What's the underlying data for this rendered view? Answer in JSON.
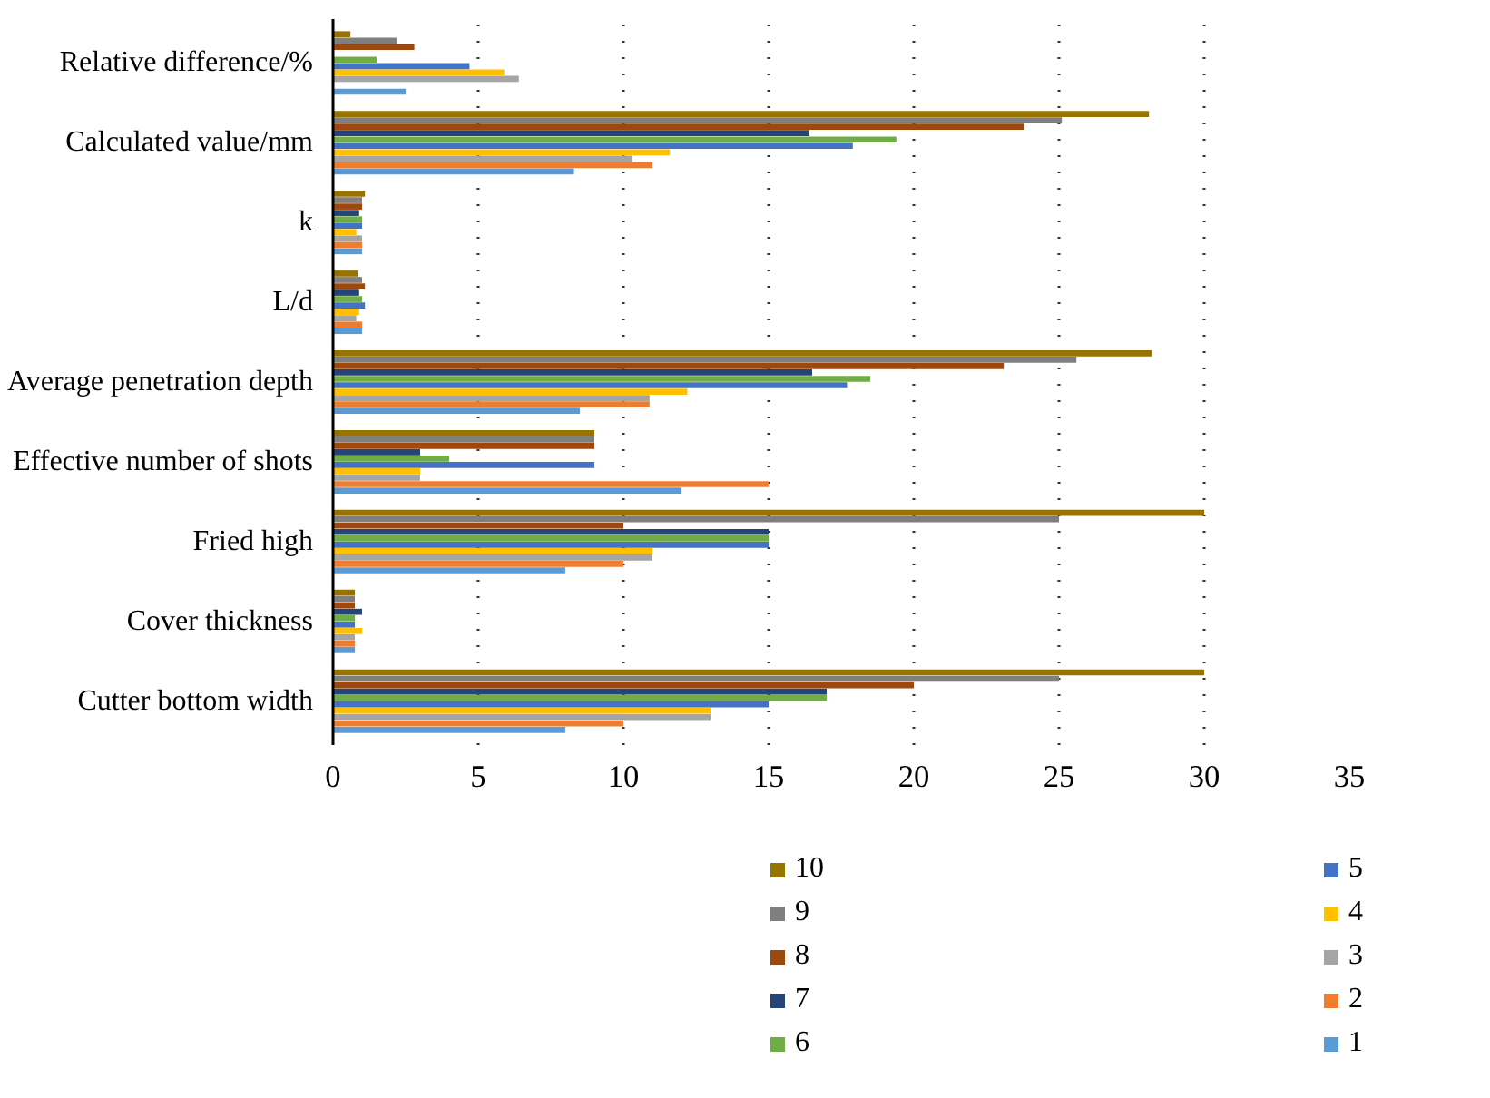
{
  "chart_data": {
    "type": "bar",
    "orientation": "horizontal",
    "categories": [
      "Relative difference/%",
      "Calculated value/mm",
      "k",
      "L/d",
      "Average penetration depth",
      "Effective number of shots",
      "Fried high",
      "Cover thickness",
      "Cutter bottom width"
    ],
    "series": [
      {
        "name": "1",
        "color": "#5b9bd5",
        "values": [
          2.5,
          8.3,
          1.0,
          1.0,
          8.5,
          12,
          8,
          0.75,
          8
        ]
      },
      {
        "name": "2",
        "color": "#ed7d31",
        "values": [
          null,
          11.0,
          1.0,
          1.0,
          10.9,
          15,
          10,
          0.75,
          10
        ]
      },
      {
        "name": "3",
        "color": "#a5a5a5",
        "values": [
          6.4,
          10.3,
          1.0,
          0.8,
          10.9,
          3,
          11,
          0.75,
          13
        ]
      },
      {
        "name": "4",
        "color": "#ffc000",
        "values": [
          5.9,
          11.6,
          0.8,
          0.9,
          12.2,
          3,
          11,
          1.0,
          13
        ]
      },
      {
        "name": "5",
        "color": "#4472c4",
        "values": [
          4.7,
          17.9,
          1.0,
          1.1,
          17.7,
          9,
          15,
          0.75,
          15
        ]
      },
      {
        "name": "6",
        "color": "#70ad47",
        "values": [
          1.5,
          19.4,
          1.0,
          1.0,
          18.5,
          4,
          15,
          0.75,
          17
        ]
      },
      {
        "name": "7",
        "color": "#264478",
        "values": [
          null,
          16.4,
          0.9,
          0.9,
          16.5,
          3,
          15,
          1.0,
          17
        ]
      },
      {
        "name": "8",
        "color": "#9e480e",
        "values": [
          2.8,
          23.8,
          1.0,
          1.1,
          23.1,
          9,
          10,
          0.75,
          20
        ]
      },
      {
        "name": "9",
        "color": "#7f7f7f",
        "values": [
          2.2,
          25.1,
          1.0,
          1.0,
          25.6,
          9,
          25,
          0.75,
          25
        ]
      },
      {
        "name": "10",
        "color": "#997300",
        "values": [
          0.6,
          28.1,
          1.1,
          0.85,
          28.2,
          9,
          30,
          0.75,
          30
        ]
      }
    ],
    "xlim": [
      0,
      35
    ],
    "xticks": [
      0,
      5,
      10,
      15,
      20,
      25,
      30,
      35
    ],
    "grid": "x",
    "legend": "bottom"
  }
}
